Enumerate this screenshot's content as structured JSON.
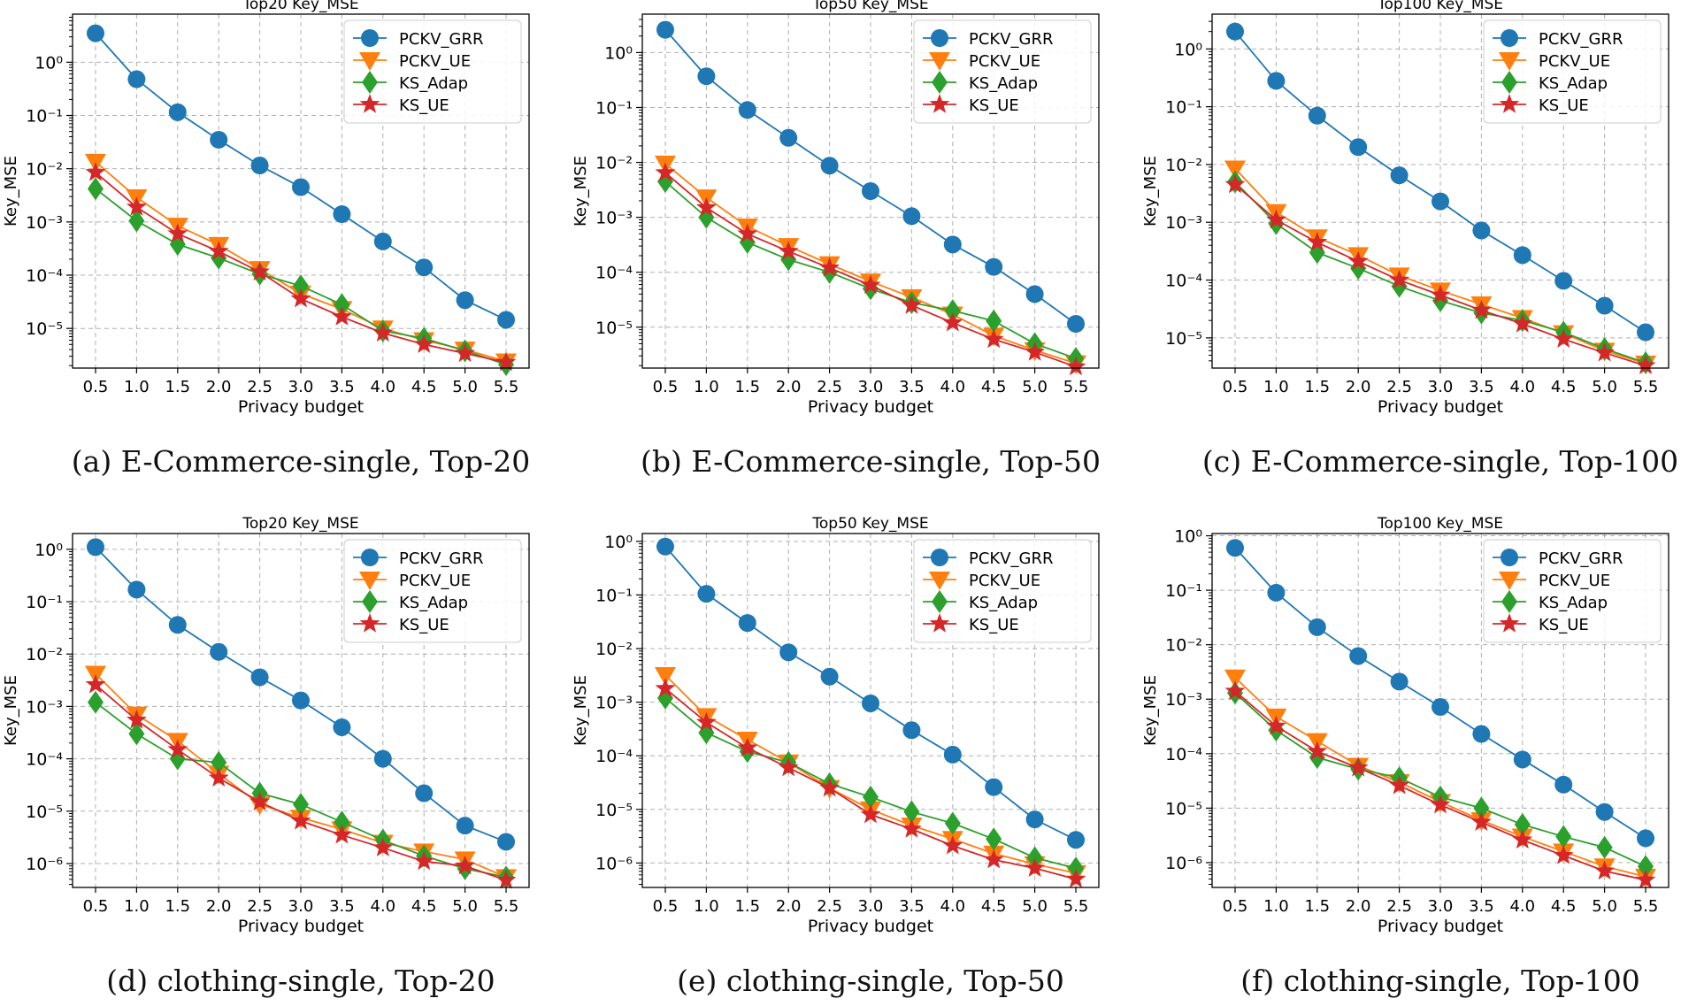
{
  "legend_names": [
    "PCKV_GRR",
    "PCKV_UE",
    "KS_Adap",
    "KS_UE"
  ],
  "series_colors": [
    "#1f77b4",
    "#ff7f0e",
    "#2ca02c",
    "#d62728"
  ],
  "marker_shapes": [
    "circle-marker",
    "down-triangle-marker",
    "diamond-marker",
    "star-marker"
  ],
  "chart_data": [
    {
      "type": "line",
      "title": "Top20 Key_MSE",
      "caption": "(a)  E-Commerce-single, Top-20",
      "xlabel": "Privacy budget",
      "ylabel": "Key_MSE",
      "yscale": "log",
      "ylim": [
        1.8e-06,
        8
      ],
      "yticks": [
        -5,
        -4,
        -3,
        -2,
        -1,
        0
      ],
      "x": [
        0.5,
        1.0,
        1.5,
        2.0,
        2.5,
        3.0,
        3.5,
        4.0,
        4.5,
        5.0,
        5.5
      ],
      "legend": "top-right",
      "grid": true,
      "series": [
        {
          "name": "PCKV_GRR",
          "values": [
            3.5,
            0.48,
            0.115,
            0.035,
            0.0115,
            0.0045,
            0.0014,
            0.00043,
            0.00014,
            3.4e-05,
            1.45e-05
          ]
        },
        {
          "name": "PCKV_UE",
          "values": [
            0.0135,
            0.0029,
            0.00085,
            0.00037,
            0.00013,
            4.5e-05,
            2.3e-05,
            1e-05,
            6e-06,
            4e-06,
            2.4e-06
          ]
        },
        {
          "name": "KS_Adap",
          "values": [
            0.0042,
            0.00105,
            0.00038,
            0.00021,
            0.000105,
            6.3e-05,
            2.8e-05,
            9e-06,
            6.5e-06,
            3.8e-06,
            2.1e-06
          ]
        },
        {
          "name": "KS_UE",
          "values": [
            0.0085,
            0.0019,
            0.0006,
            0.00028,
            0.000115,
            3.6e-05,
            1.65e-05,
            8.2e-06,
            5e-06,
            3.4e-06,
            2.3e-06
          ]
        }
      ]
    },
    {
      "type": "line",
      "title": "Top50 Key_MSE",
      "caption": "(b)  E-Commerce-single, Top-50",
      "xlabel": "Privacy budget",
      "ylabel": "Key_MSE",
      "yscale": "log",
      "ylim": [
        1.8e-06,
        5
      ],
      "yticks": [
        -5,
        -4,
        -3,
        -2,
        -1,
        0
      ],
      "x": [
        0.5,
        1.0,
        1.5,
        2.0,
        2.5,
        3.0,
        3.5,
        4.0,
        4.5,
        5.0,
        5.5
      ],
      "legend": "top-right",
      "grid": true,
      "series": [
        {
          "name": "PCKV_GRR",
          "values": [
            2.6,
            0.37,
            0.09,
            0.028,
            0.0087,
            0.003,
            0.00105,
            0.00032,
            0.000125,
            4e-05,
            1.15e-05
          ]
        },
        {
          "name": "PCKV_UE",
          "values": [
            0.0095,
            0.0023,
            0.00068,
            0.0003,
            0.00014,
            6.8e-05,
            3.5e-05,
            1.7e-05,
            7e-06,
            3.8e-06,
            2.2e-06
          ]
        },
        {
          "name": "KS_Adap",
          "values": [
            0.0045,
            0.001,
            0.00035,
            0.00017,
            0.0001,
            5e-05,
            2.8e-05,
            2e-05,
            1.3e-05,
            5e-06,
            2.7e-06
          ]
        },
        {
          "name": "KS_UE",
          "values": [
            0.0065,
            0.0015,
            0.0005,
            0.00024,
            0.00012,
            5.8e-05,
            2.5e-05,
            1.2e-05,
            6e-06,
            3.5e-06,
            1.9e-06
          ]
        }
      ]
    },
    {
      "type": "line",
      "title": "Top100 Key_MSE",
      "caption": "(c)  E-Commerce-single, Top-100",
      "xlabel": "Privacy budget",
      "ylabel": "Key_MSE",
      "yscale": "log",
      "ylim": [
        3e-06,
        4
      ],
      "yticks": [
        -5,
        -4,
        -3,
        -2,
        -1,
        0
      ],
      "x": [
        0.5,
        1.0,
        1.5,
        2.0,
        2.5,
        3.0,
        3.5,
        4.0,
        4.5,
        5.0,
        5.5
      ],
      "legend": "top-right",
      "grid": true,
      "series": [
        {
          "name": "PCKV_GRR",
          "values": [
            2.0,
            0.28,
            0.07,
            0.02,
            0.0065,
            0.0023,
            0.00072,
            0.00027,
            9.7e-05,
            3.6e-05,
            1.25e-05
          ]
        },
        {
          "name": "PCKV_UE",
          "values": [
            0.0085,
            0.0015,
            0.00055,
            0.00027,
            0.00012,
            6.6e-05,
            3.8e-05,
            2.2e-05,
            1.2e-05,
            6e-06,
            3.6e-06
          ]
        },
        {
          "name": "KS_Adap",
          "values": [
            0.005,
            0.00095,
            0.0003,
            0.00016,
            7.8e-05,
            4.4e-05,
            2.7e-05,
            2e-05,
            1.25e-05,
            6.5e-06,
            3.7e-06
          ]
        },
        {
          "name": "KS_UE",
          "values": [
            0.0045,
            0.0011,
            0.00045,
            0.00021,
            0.0001,
            5.5e-05,
            3e-05,
            1.75e-05,
            9.5e-06,
            5.5e-06,
            3.3e-06
          ]
        }
      ]
    },
    {
      "type": "line",
      "title": "Top20 Key_MSE",
      "caption": "(d)  clothing-single, Top-20",
      "xlabel": "Privacy budget",
      "ylabel": "Key_MSE",
      "yscale": "log",
      "ylim": [
        3.5e-07,
        2
      ],
      "yticks": [
        -6,
        -5,
        -4,
        -3,
        -2,
        -1,
        0
      ],
      "x": [
        0.5,
        1.0,
        1.5,
        2.0,
        2.5,
        3.0,
        3.5,
        4.0,
        4.5,
        5.0,
        5.5
      ],
      "legend": "top-right",
      "grid": true,
      "series": [
        {
          "name": "PCKV_GRR",
          "values": [
            1.1,
            0.17,
            0.036,
            0.011,
            0.0036,
            0.0013,
            0.0004,
            0.0001,
            2.2e-05,
            5.3e-06,
            2.6e-06
          ]
        },
        {
          "name": "PCKV_UE",
          "values": [
            0.0042,
            0.0007,
            0.00022,
            5.2e-05,
            1.35e-05,
            7.5e-06,
            4.5e-06,
            2.5e-06,
            1.7e-06,
            1.2e-06,
            5.5e-07
          ]
        },
        {
          "name": "KS_Adap",
          "values": [
            0.0012,
            0.0003,
            0.0001,
            8.5e-05,
            2.2e-05,
            1.35e-05,
            6.2e-06,
            2.8e-06,
            1.4e-06,
            8e-07,
            5.5e-07
          ]
        },
        {
          "name": "KS_UE",
          "values": [
            0.0026,
            0.00055,
            0.00015,
            4.3e-05,
            1.5e-05,
            6.5e-06,
            3.5e-06,
            2e-06,
            1.1e-06,
            9e-07,
            4.8e-07
          ]
        }
      ]
    },
    {
      "type": "line",
      "title": "Top50 Key_MSE",
      "caption": "(e)  clothing-single, Top-50",
      "xlabel": "Privacy budget",
      "ylabel": "Key_MSE",
      "yscale": "log",
      "ylim": [
        3.5e-07,
        1.4
      ],
      "yticks": [
        -6,
        -5,
        -4,
        -3,
        -2,
        -1,
        0
      ],
      "x": [
        0.5,
        1.0,
        1.5,
        2.0,
        2.5,
        3.0,
        3.5,
        4.0,
        4.5,
        5.0,
        5.5
      ],
      "legend": "top-right",
      "grid": true,
      "series": [
        {
          "name": "PCKV_GRR",
          "values": [
            0.8,
            0.105,
            0.03,
            0.0085,
            0.003,
            0.00095,
            0.0003,
            0.000105,
            2.6e-05,
            6.5e-06,
            2.7e-06
          ]
        },
        {
          "name": "PCKV_UE",
          "values": [
            0.0032,
            0.00055,
            0.0002,
            7.5e-05,
            2.5e-05,
            1e-05,
            5e-06,
            2.8e-06,
            1.5e-06,
            9.5e-07,
            6.5e-07
          ]
        },
        {
          "name": "KS_Adap",
          "values": [
            0.0012,
            0.00027,
            0.00012,
            7.5e-05,
            3e-05,
            1.7e-05,
            9e-06,
            5.5e-06,
            2.8e-06,
            1.25e-06,
            8e-07
          ]
        },
        {
          "name": "KS_UE",
          "values": [
            0.0018,
            0.00042,
            0.00014,
            6e-05,
            2.5e-05,
            8e-06,
            4.3e-06,
            2.1e-06,
            1.15e-06,
            8e-07,
            5e-07
          ]
        }
      ]
    },
    {
      "type": "line",
      "title": "Top100 Key_MSE",
      "caption": "(f)  clothing-single, Top-100",
      "xlabel": "Privacy budget",
      "ylabel": "Key_MSE",
      "yscale": "log",
      "ylim": [
        3.5e-07,
        1.1
      ],
      "yticks": [
        -6,
        -5,
        -4,
        -3,
        -2,
        -1,
        0
      ],
      "x": [
        0.5,
        1.0,
        1.5,
        2.0,
        2.5,
        3.0,
        3.5,
        4.0,
        4.5,
        5.0,
        5.5
      ],
      "legend": "top-right",
      "grid": true,
      "series": [
        {
          "name": "PCKV_GRR",
          "values": [
            0.6,
            0.09,
            0.021,
            0.0062,
            0.0021,
            0.00072,
            0.00023,
            7.8e-05,
            2.7e-05,
            8.5e-06,
            2.8e-06
          ]
        },
        {
          "name": "PCKV_UE",
          "values": [
            0.0025,
            0.00048,
            0.00017,
            6e-05,
            3e-05,
            1.3e-05,
            6e-06,
            3e-06,
            1.6e-06,
            8.5e-07,
            5.5e-07
          ]
        },
        {
          "name": "KS_Adap",
          "values": [
            0.0013,
            0.00027,
            8.5e-05,
            5.2e-05,
            3.6e-05,
            1.6e-05,
            1e-05,
            5e-06,
            3e-06,
            1.9e-06,
            8.5e-07
          ]
        },
        {
          "name": "KS_UE",
          "values": [
            0.0014,
            0.00032,
            0.00011,
            5.5e-05,
            2.6e-05,
            1.15e-05,
            5.5e-06,
            2.6e-06,
            1.35e-06,
            7e-07,
            4.8e-07
          ]
        }
      ]
    }
  ]
}
